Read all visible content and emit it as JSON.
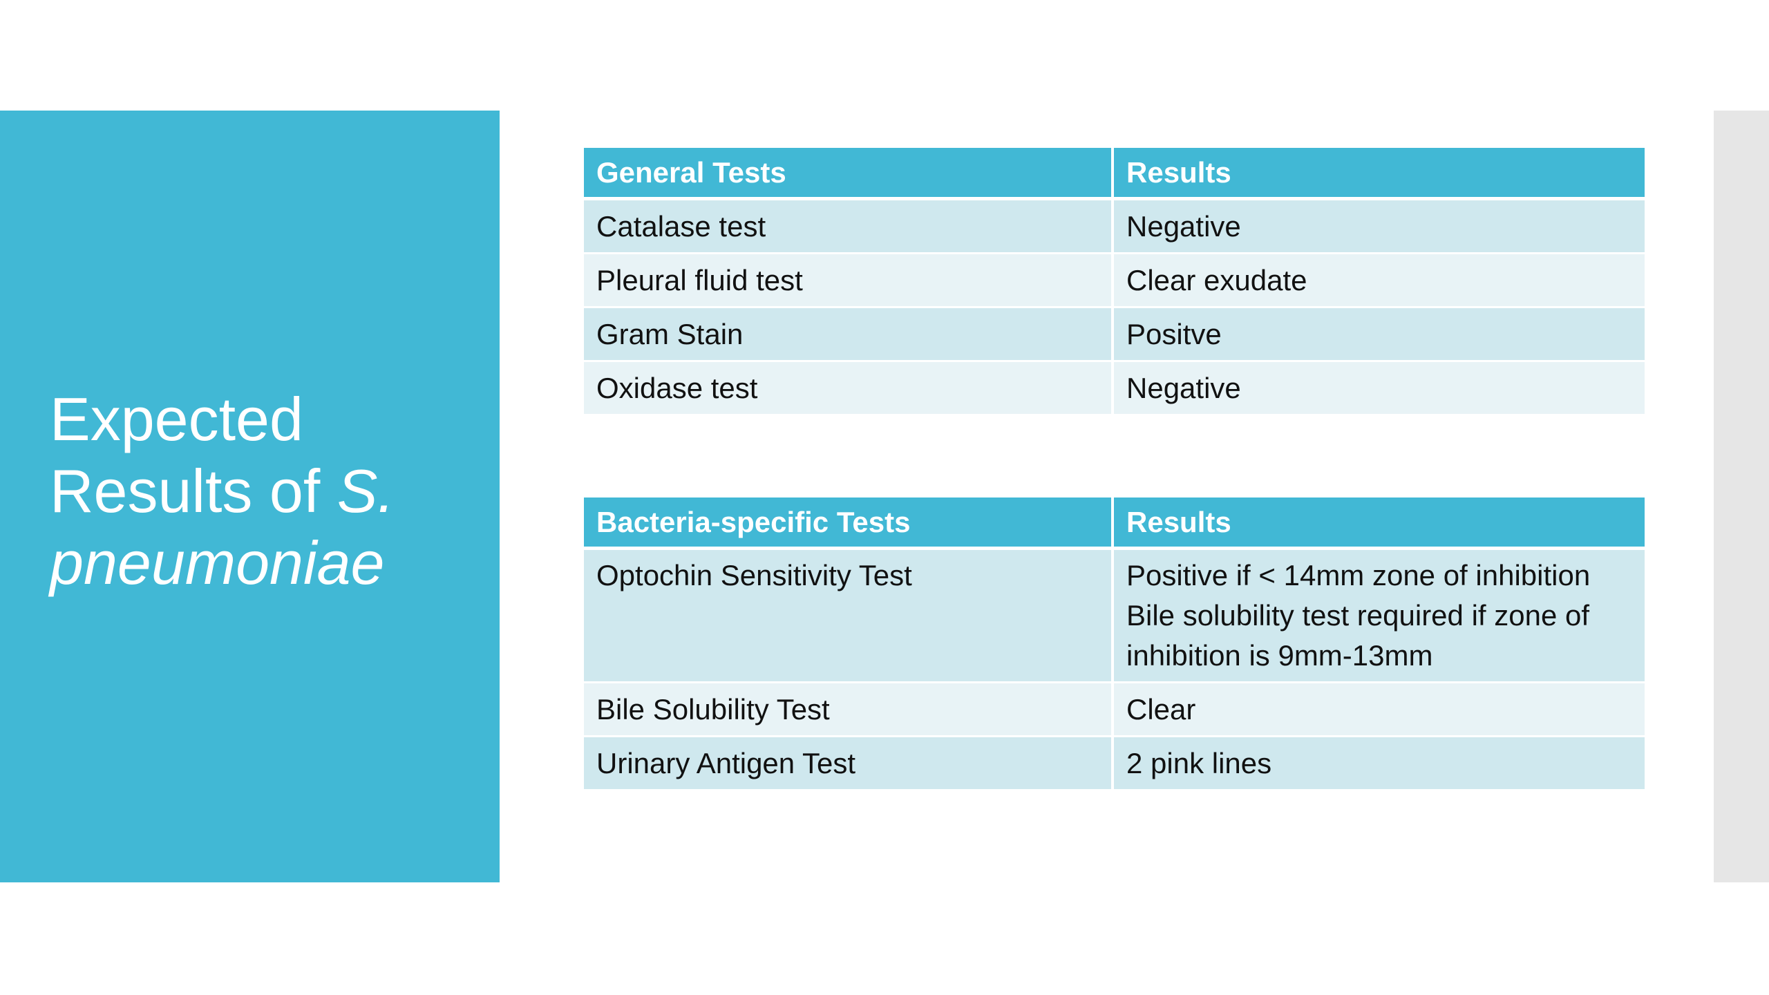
{
  "title": {
    "line1": "Expected",
    "line2_prefix": "Results of ",
    "line2_italic": "S.",
    "line3_italic": "pneumoniae"
  },
  "general_table": {
    "headers": [
      "General Tests",
      "Results"
    ],
    "rows": [
      [
        "Catalase test",
        "Negative"
      ],
      [
        "Pleural fluid test",
        "Clear exudate"
      ],
      [
        "Gram Stain",
        "Positve"
      ],
      [
        "Oxidase test",
        "Negative"
      ]
    ]
  },
  "specific_table": {
    "headers": [
      "Bacteria-specific Tests",
      "Results"
    ],
    "rows": [
      {
        "test": "Optochin Sensitivity Test",
        "result_lines": [
          "Positive if < 14mm zone of inhibition",
          "Bile solubility test required if zone of",
          "inhibition is 9mm-13mm"
        ]
      },
      {
        "test": "Bile Solubility Test",
        "result_lines": [
          "Clear"
        ]
      },
      {
        "test": "Urinary Antigen Test",
        "result_lines": [
          "2 pink lines"
        ]
      }
    ]
  },
  "colors": {
    "accent": "#41b8d5",
    "row_dark": "#cfe8ee",
    "row_light": "#e8f3f6",
    "side_strip": "#e6e6e6"
  }
}
